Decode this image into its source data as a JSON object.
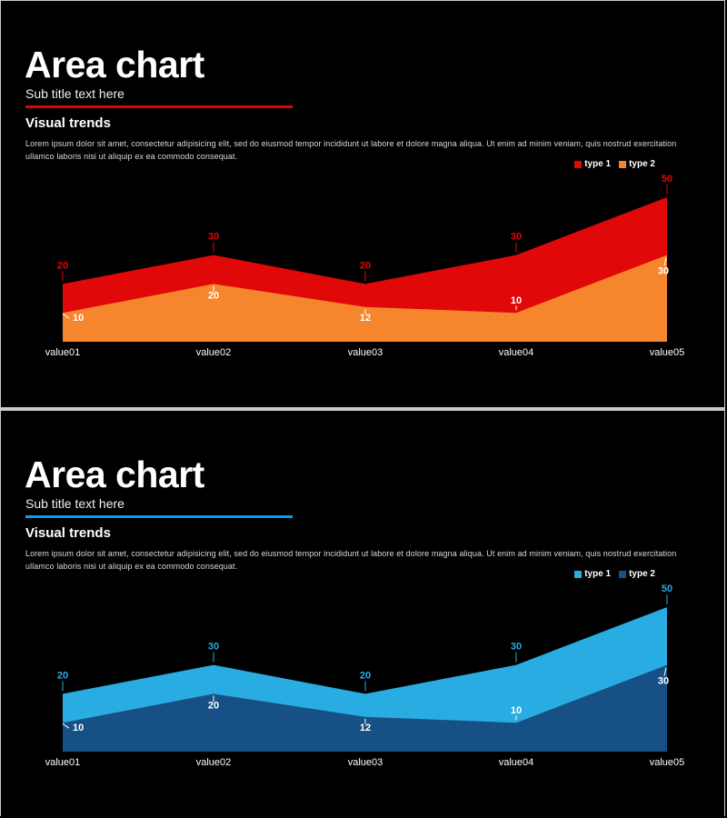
{
  "page": {
    "background": "#000000",
    "frame_color": "#c9c9c9"
  },
  "slides": [
    {
      "title": "Area chart",
      "subtitle": "Sub title text here",
      "accent_color": "#e00000",
      "section_heading": "Visual trends",
      "body_line1": "Lorem ipsum dolor sit amet, consectetur adipisicing elit, sed do eiusmod tempor incididunt ut labore et dolore magna aliqua. Ut enim ad minim veniam, quis nostrud exercitation",
      "body_line2": "ullamco laboris nisi ut aliquip ex ea commodo consequat.",
      "legend": [
        {
          "label": "type 1",
          "color": "#e00808"
        },
        {
          "label": "type 2",
          "color": "#f6862e"
        }
      ]
    },
    {
      "title": "Area chart",
      "subtitle": "Sub title text here",
      "accent_color": "#00a2e8",
      "section_heading": "Visual trends",
      "body_line1": "Lorem ipsum dolor sit amet, consectetur adipisicing elit, sed do eiusmod tempor incididunt ut labore et dolore magna aliqua. Ut enim ad minim veniam, quis nostrud exercitation",
      "body_line2": "ullamco laboris nisi ut aliquip ex ea commodo consequat.",
      "legend": [
        {
          "label": "type 1",
          "color": "#29ace2"
        },
        {
          "label": "type 2",
          "color": "#175085"
        }
      ]
    }
  ],
  "chart_data": [
    {
      "type": "area",
      "title": "Area chart (red theme)",
      "categories": [
        "value01",
        "value02",
        "value03",
        "value04",
        "value05"
      ],
      "series": [
        {
          "name": "type 1",
          "color": "#e00808",
          "label_color": "#e00808",
          "values": [
            20,
            30,
            20,
            30,
            50
          ]
        },
        {
          "name": "type 2",
          "color": "#f6862e",
          "label_color": "#ffffff",
          "values": [
            10,
            20,
            12,
            10,
            30
          ]
        }
      ],
      "ylim": [
        0,
        50
      ],
      "grid": false,
      "axes_shown": false,
      "legend_position": "top-right",
      "category_label_color": "#ffffff"
    },
    {
      "type": "area",
      "title": "Area chart (blue theme)",
      "categories": [
        "value01",
        "value02",
        "value03",
        "value04",
        "value05"
      ],
      "series": [
        {
          "name": "type 1",
          "color": "#29ace2",
          "label_color": "#29ace2",
          "values": [
            20,
            30,
            20,
            30,
            50
          ]
        },
        {
          "name": "type 2",
          "color": "#175085",
          "label_color": "#ffffff",
          "values": [
            10,
            20,
            12,
            10,
            30
          ]
        }
      ],
      "ylim": [
        0,
        50
      ],
      "grid": false,
      "axes_shown": false,
      "legend_position": "top-right",
      "category_label_color": "#ffffff"
    }
  ]
}
